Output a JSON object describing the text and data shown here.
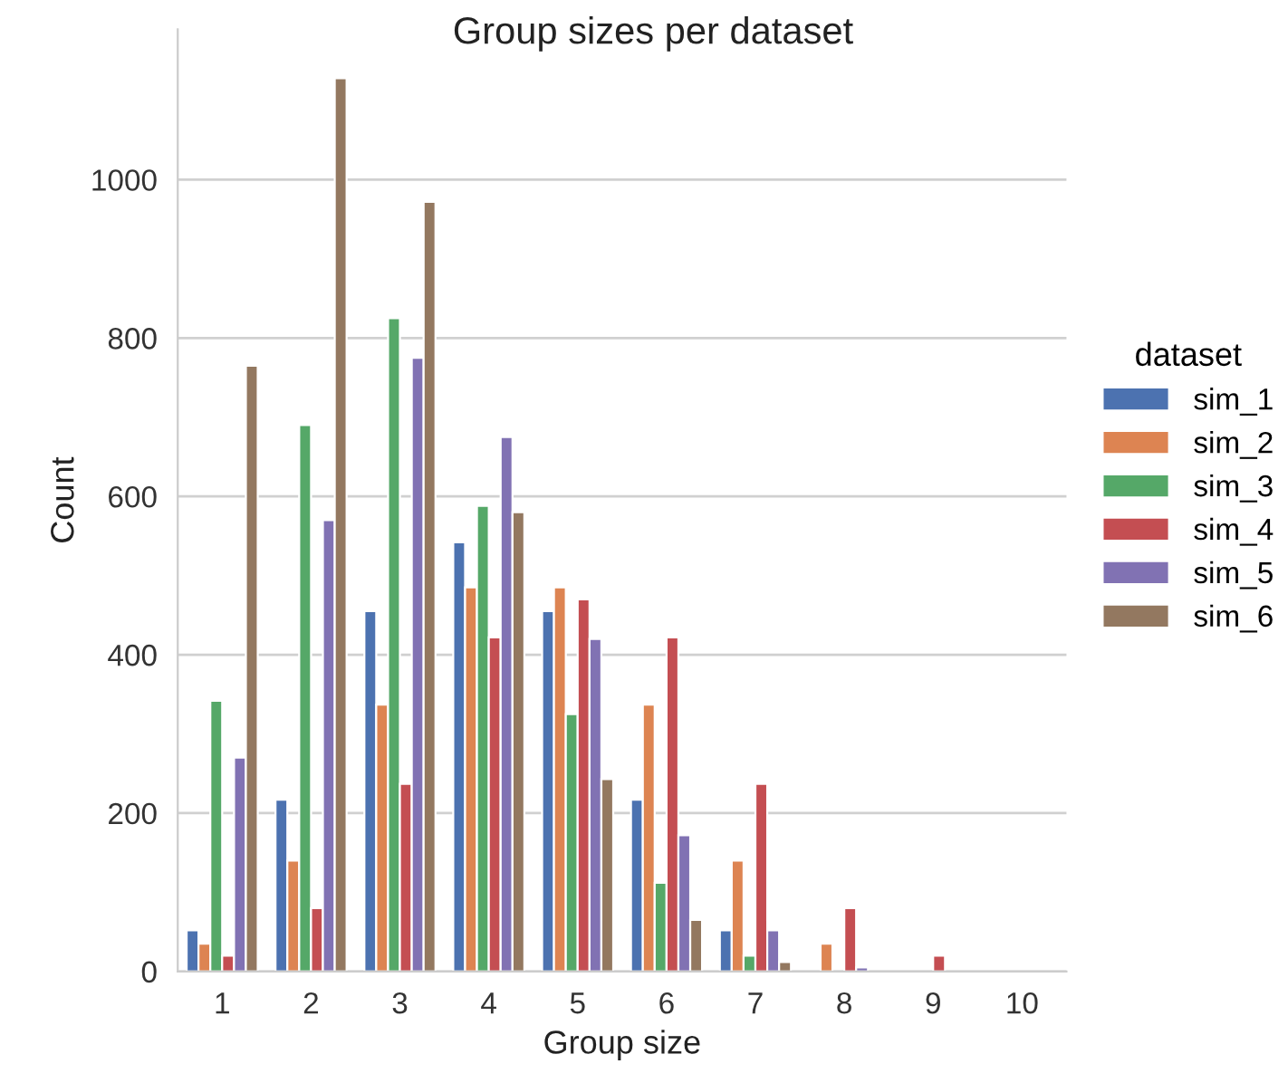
{
  "chart_data": {
    "type": "bar",
    "title": "Group sizes per dataset",
    "xlabel": "Group size",
    "ylabel": "Count",
    "legend_title": "dataset",
    "categories": [
      "1",
      "2",
      "3",
      "4",
      "5",
      "6",
      "7",
      "8",
      "9",
      "10"
    ],
    "series": [
      {
        "name": "sim_1",
        "color": "#4c72b0",
        "values": [
          52,
          217,
          455,
          542,
          455,
          217,
          52,
          0,
          0,
          0
        ]
      },
      {
        "name": "sim_2",
        "color": "#dd8452",
        "values": [
          35,
          140,
          337,
          485,
          485,
          337,
          140,
          35,
          0,
          0
        ]
      },
      {
        "name": "sim_3",
        "color": "#55a868",
        "values": [
          342,
          690,
          825,
          588,
          325,
          112,
          20,
          0,
          0,
          0
        ]
      },
      {
        "name": "sim_4",
        "color": "#c44e52",
        "values": [
          20,
          80,
          237,
          422,
          470,
          422,
          237,
          80,
          20,
          0
        ]
      },
      {
        "name": "sim_5",
        "color": "#8172b3",
        "values": [
          270,
          570,
          775,
          675,
          420,
          172,
          52,
          5,
          0,
          0
        ]
      },
      {
        "name": "sim_6",
        "color": "#937860",
        "values": [
          765,
          1128,
          972,
          580,
          243,
          65,
          12,
          0,
          0,
          0
        ]
      }
    ],
    "ylim": [
      0,
      1190
    ],
    "yticks": [
      0,
      200,
      400,
      600,
      800,
      1000
    ],
    "grid": "y",
    "legend": "right"
  }
}
